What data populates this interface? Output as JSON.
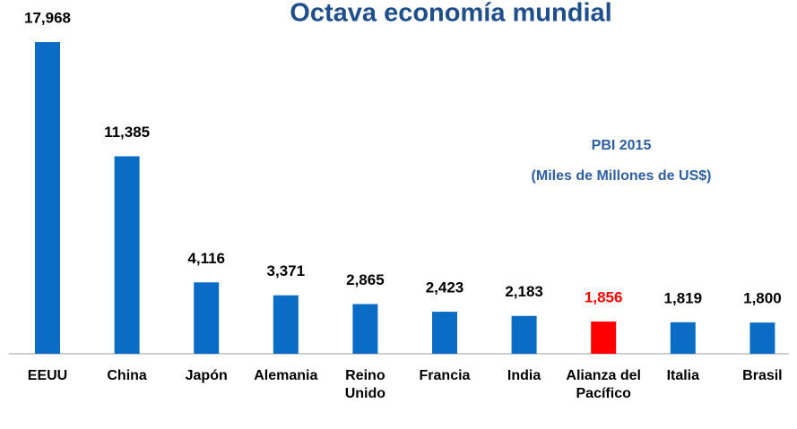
{
  "chart_data": {
    "type": "bar",
    "title": "Octava economía mundial",
    "subtitle": [
      "PBI 2015",
      "(Miles de Millones de US$)"
    ],
    "categories": [
      "EEUU",
      "China",
      "Japón",
      "Alemania",
      "Reino Unido",
      "Francia",
      "India",
      "Alianza del Pacífico",
      "Italia",
      "Brasil"
    ],
    "values": [
      17968,
      11385,
      4116,
      3371,
      2865,
      2423,
      2183,
      1856,
      1819,
      1800
    ],
    "value_labels": [
      "17,968",
      "11,385",
      "4,116",
      "3,371",
      "2,865",
      "2,423",
      "2,183",
      "1,856",
      "1,819",
      "1,800"
    ],
    "colors": [
      "#0a6cc4",
      "#0a6cc4",
      "#0a6cc4",
      "#0a6cc4",
      "#0a6cc4",
      "#0a6cc4",
      "#0a6cc4",
      "#ff0000",
      "#0a6cc4",
      "#0a6cc4"
    ],
    "label_colors": [
      "#000000",
      "#000000",
      "#000000",
      "#000000",
      "#000000",
      "#000000",
      "#000000",
      "#ff0000",
      "#000000",
      "#000000"
    ]
  }
}
